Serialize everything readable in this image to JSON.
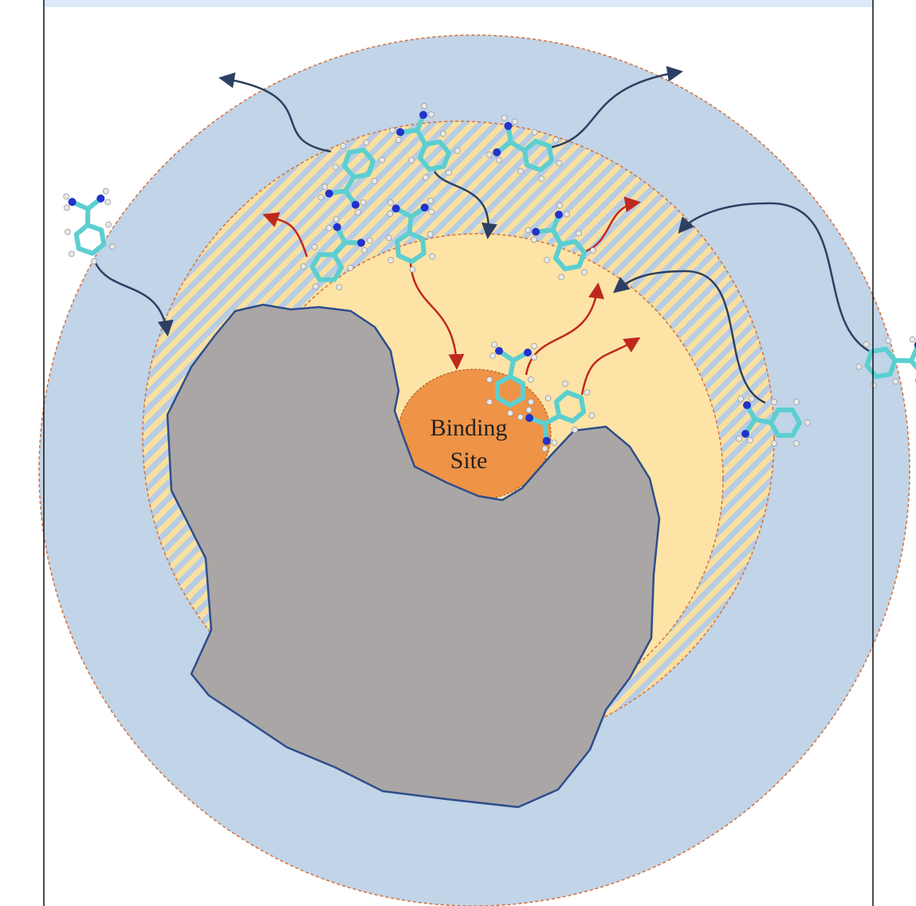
{
  "binding_site": {
    "line1": "Binding",
    "line2": "Site"
  }
}
